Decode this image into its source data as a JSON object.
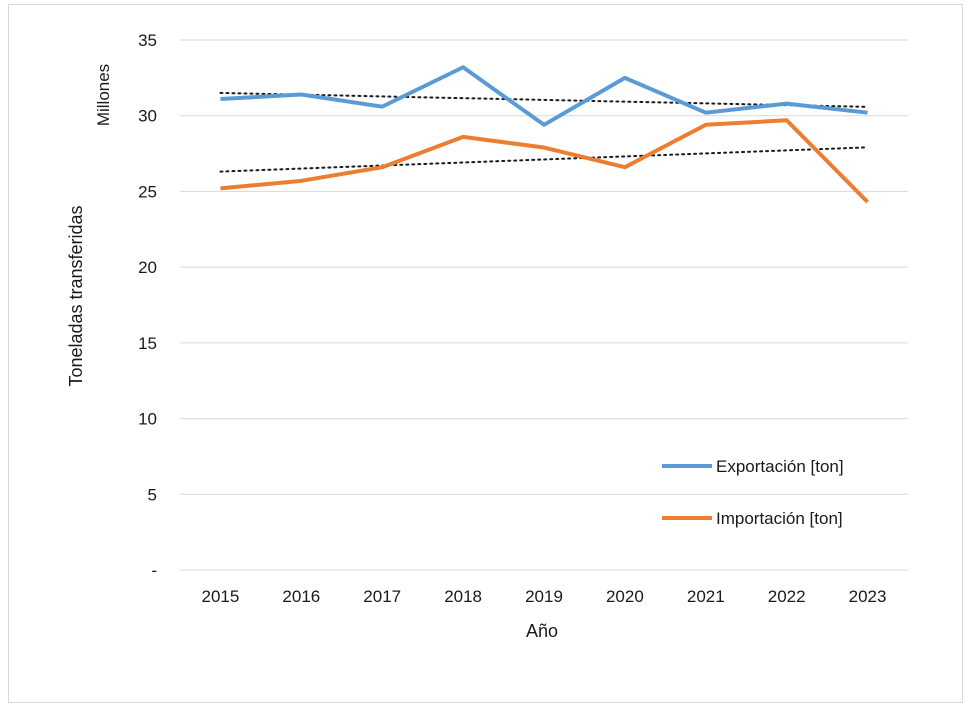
{
  "chart_data": {
    "type": "line",
    "title": "",
    "xlabel": "Año",
    "ylabel": "Toneladas transferidas",
    "y_unit_label": "Millones",
    "categories": [
      "2015",
      "2016",
      "2017",
      "2018",
      "2019",
      "2020",
      "2021",
      "2022",
      "2023"
    ],
    "y_ticks": [
      "-",
      "5",
      "10",
      "15",
      "20",
      "25",
      "30",
      "35"
    ],
    "ylim": [
      0,
      35
    ],
    "grid": "horizontal",
    "legend_position": "bottom-right",
    "series": [
      {
        "name": "Exportación [ton]",
        "color": "#5b9bd5",
        "values": [
          31.1,
          31.4,
          30.6,
          33.2,
          29.4,
          32.5,
          30.2,
          30.8,
          30.2
        ]
      },
      {
        "name": "Importación [ton]",
        "color": "#ed7d31",
        "values": [
          25.2,
          25.7,
          26.6,
          28.6,
          27.9,
          26.6,
          29.4,
          29.7,
          24.3
        ]
      }
    ],
    "trendlines": [
      {
        "series": "Exportación [ton]",
        "style": "dotted",
        "color": "#1a1a1a"
      },
      {
        "series": "Importación [ton]",
        "style": "dotted",
        "color": "#1a1a1a"
      }
    ]
  }
}
